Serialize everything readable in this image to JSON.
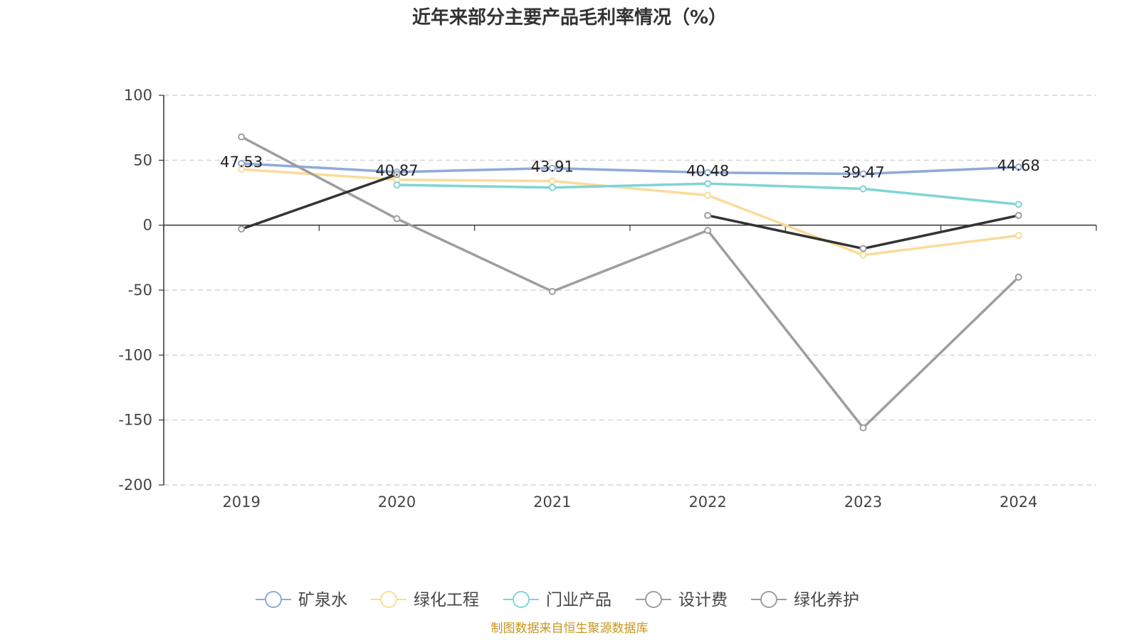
{
  "chart_data": {
    "type": "line",
    "title": "近年来部分主要产品毛利率情况（%）",
    "source": "制图数据来自恒生聚源数据库",
    "categories": [
      "2019",
      "2020",
      "2021",
      "2022",
      "2023",
      "2024"
    ],
    "ylim": [
      -200,
      100
    ],
    "yticks": [
      100,
      50,
      0,
      -50,
      -100,
      -150,
      -200
    ],
    "grid": true,
    "legend_position": "bottom",
    "series": [
      {
        "name": "矿泉水",
        "color": "#8eaad8",
        "values": [
          47.53,
          40.87,
          43.91,
          40.48,
          39.47,
          44.68
        ],
        "labels": [
          "47.53",
          "40.87",
          "43.91",
          "40.48",
          "39.47",
          "44.68"
        ]
      },
      {
        "name": "绿化工程",
        "color": "#fbdb98",
        "values": [
          43,
          35,
          34,
          23,
          -23,
          -8
        ]
      },
      {
        "name": "门业产品",
        "color": "#80d4d6",
        "values": [
          null,
          31,
          29,
          32,
          28,
          16
        ]
      },
      {
        "name": "设计费",
        "color": "#9e9e9e",
        "values": [
          68,
          5,
          -51,
          -4,
          -156,
          -40
        ]
      },
      {
        "name": "绿化养护",
        "color": "#9e9e9e",
        "line_color": "#333333",
        "values": [
          -3,
          39,
          null,
          7.5,
          -18,
          7.5
        ]
      }
    ]
  }
}
